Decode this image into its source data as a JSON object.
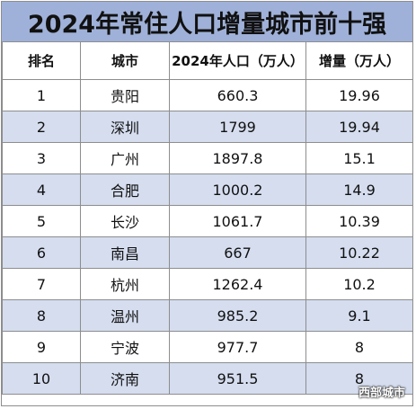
{
  "title": "2024年常住人口增量城市前十强",
  "headers": {
    "rank": "排名",
    "city": "城市",
    "population": "2024年人口（万人）",
    "increase": "增量（万人）"
  },
  "rows": [
    {
      "rank": "1",
      "city": "贵阳",
      "population": "660.3",
      "increase": "19.96"
    },
    {
      "rank": "2",
      "city": "深圳",
      "population": "1799",
      "increase": "19.94"
    },
    {
      "rank": "3",
      "city": "广州",
      "population": "1897.8",
      "increase": "15.1"
    },
    {
      "rank": "4",
      "city": "合肥",
      "population": "1000.2",
      "increase": "14.9"
    },
    {
      "rank": "5",
      "city": "长沙",
      "population": "1061.7",
      "increase": "10.39"
    },
    {
      "rank": "6",
      "city": "南昌",
      "population": "667",
      "increase": "10.22"
    },
    {
      "rank": "7",
      "city": "杭州",
      "population": "1262.4",
      "increase": "10.2"
    },
    {
      "rank": "8",
      "city": "温州",
      "population": "985.2",
      "increase": "9.1"
    },
    {
      "rank": "9",
      "city": "宁波",
      "population": "977.7",
      "increase": "8"
    },
    {
      "rank": "10",
      "city": "济南",
      "population": "951.5",
      "increase": "8"
    }
  ],
  "watermark": "西部城市",
  "colors": {
    "title_bg": "#9fb1d8",
    "stripe": "#d5ddef",
    "border": "#8d8d8d"
  }
}
